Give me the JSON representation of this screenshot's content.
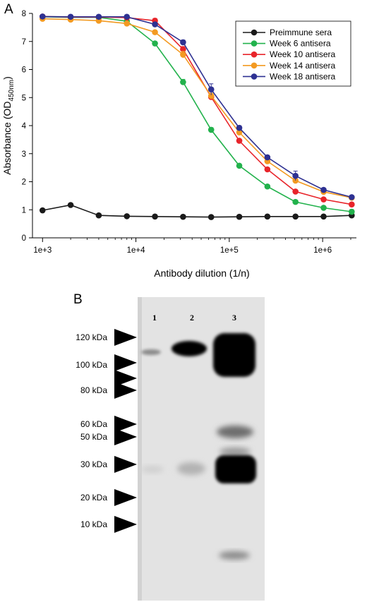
{
  "panel_a": {
    "letter": "A"
  },
  "panel_b": {
    "letter": "B",
    "lanes": [
      "1",
      "2",
      "3"
    ],
    "markers": [
      "120 kDa",
      "100 kDa",
      "80 kDa",
      "60 kDa",
      "50 kDa",
      "30 kDa",
      "20 kDa",
      "10 kDa"
    ]
  },
  "chart_data": {
    "type": "line",
    "xscale": "log",
    "x": [
      1000,
      2000,
      4000,
      8000,
      16000,
      32000,
      64000,
      128000,
      256000,
      512000,
      1024000,
      2048000
    ],
    "xticks": [
      1000,
      10000,
      100000,
      1000000
    ],
    "xtick_labels": [
      "1e+3",
      "1e+4",
      "1e+5",
      "1e+6"
    ],
    "ylim": [
      0,
      8
    ],
    "yticks": [
      0,
      1,
      2,
      3,
      4,
      5,
      6,
      7,
      8
    ],
    "xlabel": "Antibody dilution (1/n)",
    "ylabel_main": "Absorbance (OD",
    "ylabel_sub": "450nm",
    "ylabel_close": ")",
    "legend_position": "top-right",
    "grid": false,
    "series": [
      {
        "name": "Preimmune sera",
        "color": "#1a1a1a",
        "values": [
          0.98,
          1.17,
          0.8,
          0.77,
          0.76,
          0.75,
          0.74,
          0.75,
          0.76,
          0.76,
          0.76,
          0.8
        ],
        "errors": [
          0.03,
          0.03,
          0.02,
          0.02,
          0.02,
          0.02,
          0.02,
          0.02,
          0.02,
          0.02,
          0.02,
          0.05
        ]
      },
      {
        "name": "Week 6 antisera",
        "color": "#22b24c",
        "values": [
          7.88,
          7.86,
          7.86,
          7.72,
          6.93,
          5.55,
          3.85,
          2.57,
          1.83,
          1.28,
          1.07,
          0.93
        ],
        "errors": [
          0.04,
          0.04,
          0.04,
          0.05,
          0.06,
          0.1,
          0.08,
          0.05,
          0.05,
          0.04,
          0.04,
          0.08
        ]
      },
      {
        "name": "Week 10 antisera",
        "color": "#e8242a",
        "values": [
          7.89,
          7.87,
          7.87,
          7.85,
          7.74,
          6.72,
          5.02,
          3.46,
          2.44,
          1.65,
          1.37,
          1.19
        ],
        "errors": [
          0.04,
          0.04,
          0.04,
          0.05,
          0.08,
          0.1,
          0.1,
          0.06,
          0.05,
          0.05,
          0.05,
          0.05
        ]
      },
      {
        "name": "Week 14 antisera",
        "color": "#f39a22",
        "values": [
          7.81,
          7.78,
          7.74,
          7.64,
          7.33,
          6.53,
          5.06,
          3.76,
          2.73,
          2.04,
          1.64,
          1.43
        ],
        "errors": [
          0.04,
          0.04,
          0.04,
          0.05,
          0.06,
          0.12,
          0.1,
          0.08,
          0.06,
          0.06,
          0.05,
          0.05
        ]
      },
      {
        "name": "Week 18 antisera",
        "color": "#2e3192",
        "values": [
          7.89,
          7.88,
          7.88,
          7.88,
          7.61,
          6.97,
          5.29,
          3.92,
          2.87,
          2.21,
          1.71,
          1.45
        ],
        "errors": [
          0.04,
          0.04,
          0.04,
          0.05,
          0.07,
          0.08,
          0.2,
          0.08,
          0.07,
          0.17,
          0.06,
          0.05
        ]
      }
    ]
  }
}
